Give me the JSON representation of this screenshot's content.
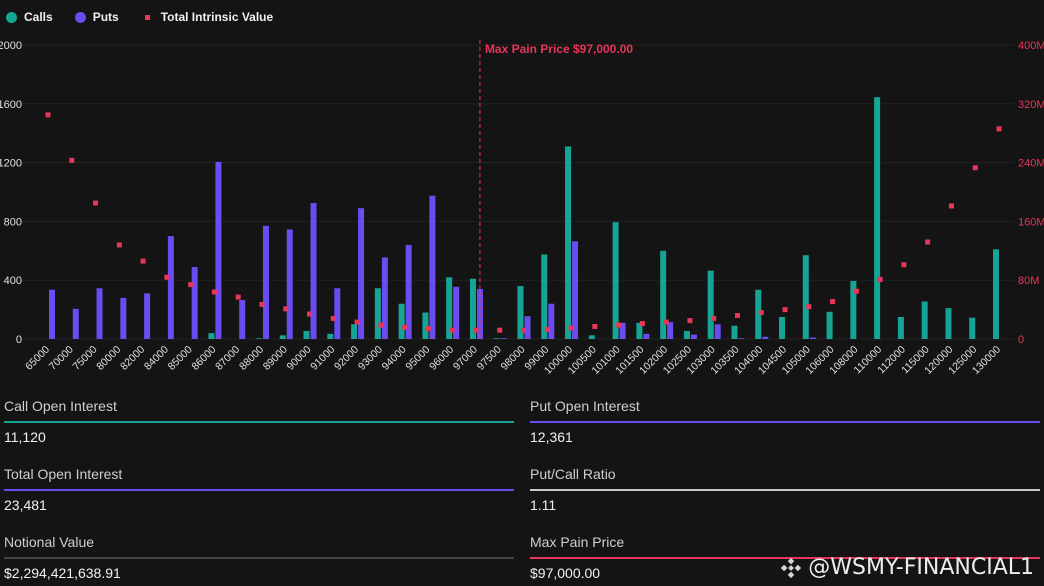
{
  "legend": {
    "calls_label": "Calls",
    "puts_label": "Puts",
    "intrinsic_label": "Total Intrinsic Value"
  },
  "colors": {
    "calls": "#14a594",
    "puts": "#6a4cf0",
    "intrinsic": "#e8365a",
    "background": "#141414",
    "grid": "#222222",
    "axis_text": "#e0e0e0",
    "right_axis_text": "#e8365a",
    "neutral_bar": "#c8c8c8"
  },
  "chart_data": {
    "type": "bar",
    "categories": [
      "65000",
      "70000",
      "75000",
      "80000",
      "82000",
      "84000",
      "85000",
      "86000",
      "87000",
      "88000",
      "89000",
      "90000",
      "91000",
      "92000",
      "93000",
      "94000",
      "95000",
      "96000",
      "97000",
      "97500",
      "98000",
      "99000",
      "100000",
      "100500",
      "101000",
      "101500",
      "102000",
      "102500",
      "103000",
      "103500",
      "104000",
      "104500",
      "105000",
      "106000",
      "108000",
      "110000",
      "112000",
      "115000",
      "120000",
      "125000",
      "130000"
    ],
    "series": [
      {
        "name": "Calls",
        "type": "bar",
        "axis": "left",
        "values": [
          0,
          0,
          0,
          0,
          0,
          0,
          0,
          40,
          0,
          5,
          25,
          55,
          35,
          100,
          345,
          240,
          180,
          420,
          410,
          5,
          360,
          575,
          1310,
          25,
          795,
          110,
          600,
          55,
          465,
          90,
          335,
          150,
          570,
          185,
          395,
          1645,
          150,
          255,
          210,
          145,
          610
        ]
      },
      {
        "name": "Puts",
        "type": "bar",
        "axis": "left",
        "values": [
          335,
          205,
          345,
          280,
          310,
          700,
          490,
          1205,
          265,
          770,
          745,
          925,
          345,
          890,
          555,
          640,
          975,
          355,
          340,
          5,
          155,
          240,
          665,
          0,
          110,
          35,
          115,
          30,
          100,
          5,
          15,
          0,
          10,
          0,
          0,
          0,
          0,
          0,
          0,
          0,
          0
        ]
      },
      {
        "name": "Total Intrinsic Value",
        "type": "scatter",
        "axis": "right",
        "values": [
          305000000,
          243000000,
          185000000,
          128000000,
          106000000,
          84000000,
          74000000,
          64000000,
          57000000,
          47000000,
          41000000,
          34000000,
          28000000,
          23000000,
          19000000,
          16000000,
          14000000,
          12000000,
          12000000,
          12000000,
          12000000,
          13000000,
          15000000,
          17000000,
          19000000,
          21000000,
          23000000,
          25000000,
          28000000,
          32000000,
          36000000,
          40000000,
          44000000,
          51000000,
          65000000,
          81000000,
          101000000,
          132000000,
          181000000,
          233000000,
          286000000
        ]
      }
    ],
    "left_axis": {
      "ylim": [
        0,
        2000
      ],
      "ticks": [
        "0",
        "400",
        "800",
        "1200",
        "1600",
        "2000"
      ],
      "tick_values": [
        0,
        400,
        800,
        1200,
        1600,
        2000
      ]
    },
    "right_axis": {
      "ylim": [
        0,
        400000000
      ],
      "ticks": [
        "0",
        "80M",
        "160M",
        "240M",
        "320M",
        "400M"
      ],
      "tick_values": [
        0,
        80000000,
        160000000,
        240000000,
        320000000,
        400000000
      ]
    },
    "annotation": {
      "label": "Max Pain Price $97,000.00",
      "category": "97000"
    },
    "grid": true,
    "legend_position": "top-left"
  },
  "stats": [
    {
      "label": "Call Open Interest",
      "value": "11,120",
      "color": "#14a594"
    },
    {
      "label": "Put Open Interest",
      "value": "12,361",
      "color": "#6a4cf0"
    },
    {
      "label": "Total Open Interest",
      "value": "23,481",
      "color": "#6a4cf0"
    },
    {
      "label": "Put/Call Ratio",
      "value": "1.11",
      "color": "#c8c8c8"
    },
    {
      "label": "Notional Value",
      "value": "$2,294,421,638.91",
      "color": "#444444"
    },
    {
      "label": "Max Pain Price",
      "value": "$97,000.00",
      "color": "#e8365a"
    }
  ],
  "watermark": {
    "text": "@WSMY-FINANCIAL1",
    "icon": "binance-logo-icon"
  }
}
